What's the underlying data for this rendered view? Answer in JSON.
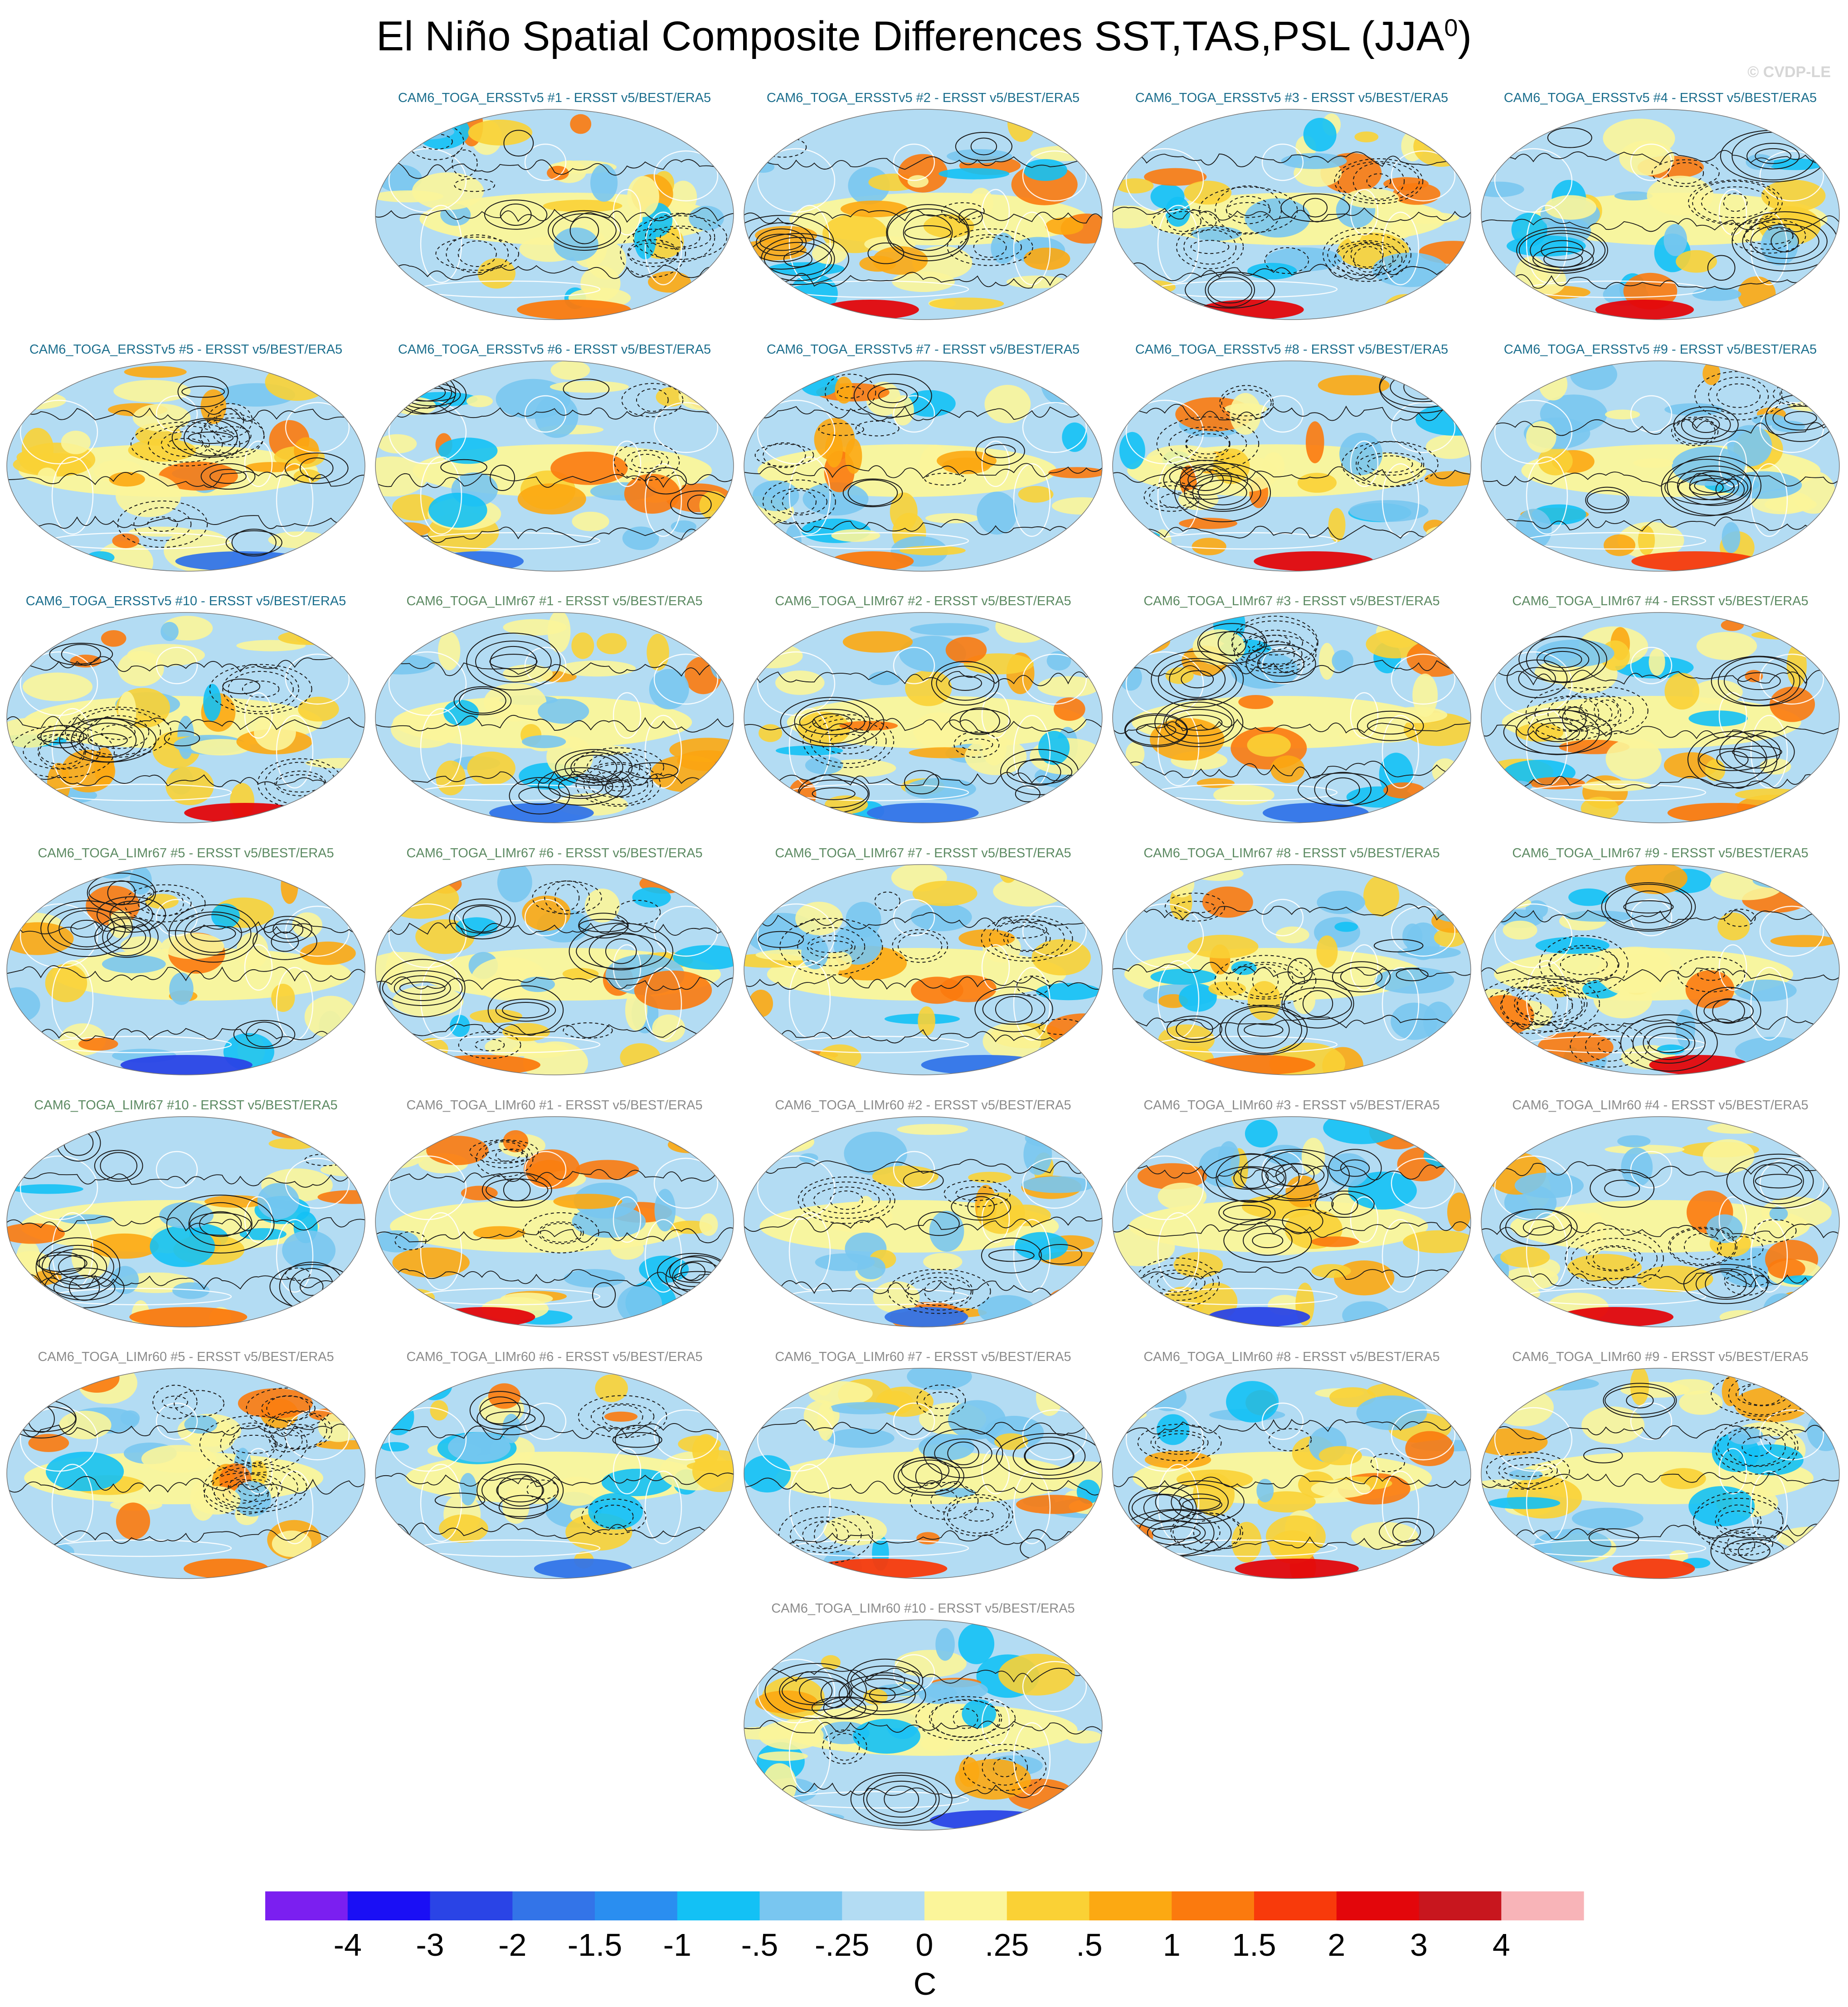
{
  "title": "El Niño Spatial Composite Differences SST,TAS,PSL (JJA",
  "title_sup": "0",
  "title_end": ")",
  "credit": "© CVDP-LE",
  "colorbar": {
    "unit_label": "C",
    "tick_labels": [
      "-4",
      "-3",
      "-2",
      "-1.5",
      "-1",
      "-.5",
      "-.25",
      "0",
      ".25",
      ".5",
      "1",
      "1.5",
      "2",
      "3",
      "4"
    ],
    "colors": [
      "#7b1ff0",
      "#1a0ff5",
      "#2a44e6",
      "#3374e8",
      "#2a8ef0",
      "#13c1f5",
      "#79c6f0",
      "#b3dcf3",
      "#fbf59a",
      "#fad135",
      "#fca912",
      "#fb7a0e",
      "#f83a0b",
      "#e3060b",
      "#c8161e",
      "#f8b4b8"
    ]
  },
  "chart_data": {
    "type": "map-panels",
    "title": "El Niño Spatial Composite Differences SST,TAS,PSL (JJA0)",
    "colorbar_unit": "C",
    "colorbar_levels": [
      -4,
      -3,
      -2,
      -1.5,
      -1,
      -0.5,
      -0.25,
      0,
      0.25,
      0.5,
      1,
      1.5,
      2,
      3,
      4
    ],
    "panels": [
      {
        "title": "CAM6_TOGA_ERSSTv5 #1 - ERSST v5/BEST/ERA5",
        "group": "ersst",
        "seed": 11
      },
      {
        "title": "CAM6_TOGA_ERSSTv5 #2 - ERSST v5/BEST/ERA5",
        "group": "ersst",
        "seed": 23
      },
      {
        "title": "CAM6_TOGA_ERSSTv5 #3 - ERSST v5/BEST/ERA5",
        "group": "ersst",
        "seed": 37
      },
      {
        "title": "CAM6_TOGA_ERSSTv5 #4 - ERSST v5/BEST/ERA5",
        "group": "ersst",
        "seed": 41
      },
      {
        "title": "CAM6_TOGA_ERSSTv5 #5 - ERSST v5/BEST/ERA5",
        "group": "ersst",
        "seed": 53
      },
      {
        "title": "CAM6_TOGA_ERSSTv5 #6 - ERSST v5/BEST/ERA5",
        "group": "ersst",
        "seed": 67
      },
      {
        "title": "CAM6_TOGA_ERSSTv5 #7 - ERSST v5/BEST/ERA5",
        "group": "ersst",
        "seed": 71
      },
      {
        "title": "CAM6_TOGA_ERSSTv5 #8 - ERSST v5/BEST/ERA5",
        "group": "ersst",
        "seed": 83
      },
      {
        "title": "CAM6_TOGA_ERSSTv5 #9 - ERSST v5/BEST/ERA5",
        "group": "ersst",
        "seed": 97
      },
      {
        "title": "CAM6_TOGA_ERSSTv5 #10 - ERSST v5/BEST/ERA5",
        "group": "ersst",
        "seed": 101
      },
      {
        "title": "CAM6_TOGA_LIMr67 #1 - ERSST v5/BEST/ERA5",
        "group": "lim67",
        "seed": 113
      },
      {
        "title": "CAM6_TOGA_LIMr67 #2 - ERSST v5/BEST/ERA5",
        "group": "lim67",
        "seed": 127
      },
      {
        "title": "CAM6_TOGA_LIMr67 #3 - ERSST v5/BEST/ERA5",
        "group": "lim67",
        "seed": 131
      },
      {
        "title": "CAM6_TOGA_LIMr67 #4 - ERSST v5/BEST/ERA5",
        "group": "lim67",
        "seed": 149
      },
      {
        "title": "CAM6_TOGA_LIMr67 #5 - ERSST v5/BEST/ERA5",
        "group": "lim67",
        "seed": 151
      },
      {
        "title": "CAM6_TOGA_LIMr67 #6 - ERSST v5/BEST/ERA5",
        "group": "lim67",
        "seed": 163
      },
      {
        "title": "CAM6_TOGA_LIMr67 #7 - ERSST v5/BEST/ERA5",
        "group": "lim67",
        "seed": 173
      },
      {
        "title": "CAM6_TOGA_LIMr67 #8 - ERSST v5/BEST/ERA5",
        "group": "lim67",
        "seed": 181
      },
      {
        "title": "CAM6_TOGA_LIMr67 #9 - ERSST v5/BEST/ERA5",
        "group": "lim67",
        "seed": 193
      },
      {
        "title": "CAM6_TOGA_LIMr67 #10 - ERSST v5/BEST/ERA5",
        "group": "lim67",
        "seed": 199
      },
      {
        "title": "CAM6_TOGA_LIMr60 #1 - ERSST v5/BEST/ERA5",
        "group": "lim60",
        "seed": 211
      },
      {
        "title": "CAM6_TOGA_LIMr60 #2 - ERSST v5/BEST/ERA5",
        "group": "lim60",
        "seed": 223
      },
      {
        "title": "CAM6_TOGA_LIMr60 #3 - ERSST v5/BEST/ERA5",
        "group": "lim60",
        "seed": 229
      },
      {
        "title": "CAM6_TOGA_LIMr60 #4 - ERSST v5/BEST/ERA5",
        "group": "lim60",
        "seed": 239
      },
      {
        "title": "CAM6_TOGA_LIMr60 #5 - ERSST v5/BEST/ERA5",
        "group": "lim60",
        "seed": 241
      },
      {
        "title": "CAM6_TOGA_LIMr60 #6 - ERSST v5/BEST/ERA5",
        "group": "lim60",
        "seed": 251
      },
      {
        "title": "CAM6_TOGA_LIMr60 #7 - ERSST v5/BEST/ERA5",
        "group": "lim60",
        "seed": 263
      },
      {
        "title": "CAM6_TOGA_LIMr60 #8 - ERSST v5/BEST/ERA5",
        "group": "lim60",
        "seed": 271
      },
      {
        "title": "CAM6_TOGA_LIMr60 #9 - ERSST v5/BEST/ERA5",
        "group": "lim60",
        "seed": 281
      },
      {
        "title": "CAM6_TOGA_LIMr60 #10 - ERSST v5/BEST/ERA5",
        "group": "lim60",
        "seed": 293
      }
    ]
  }
}
